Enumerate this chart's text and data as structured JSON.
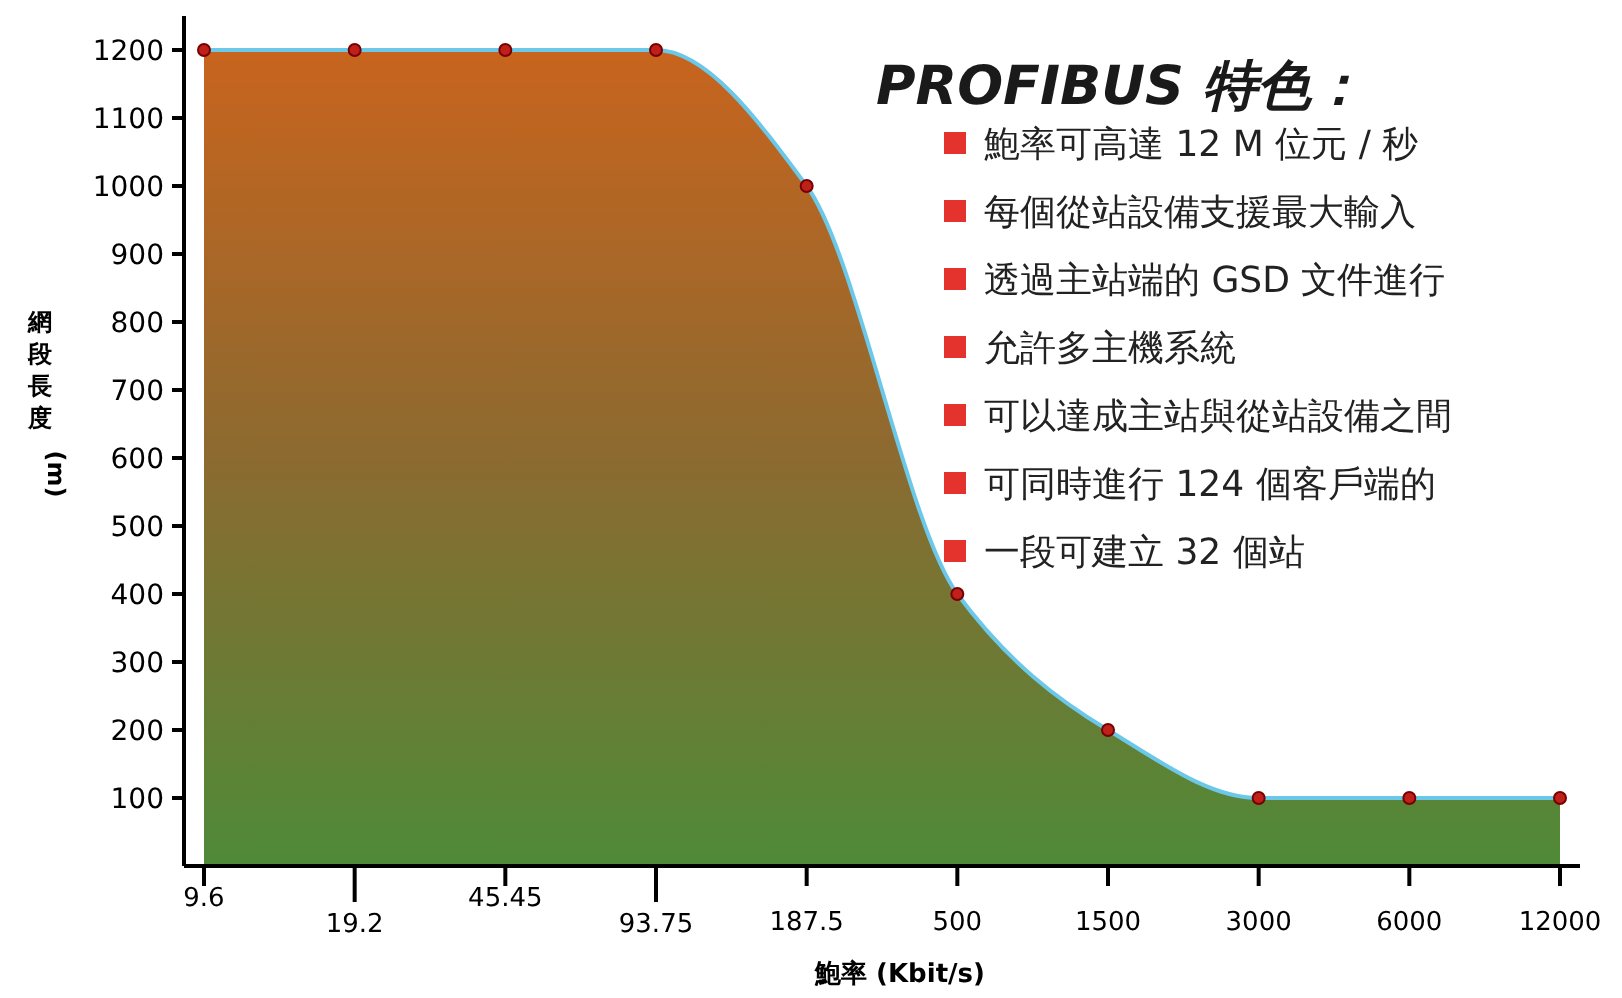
{
  "chart_data": {
    "type": "area",
    "title": "PROFIBUS 特色：",
    "xlabel": "鮑率 (Kbit/s)",
    "ylabel": "網段長度 (m)",
    "categories": [
      "9.6",
      "19.2",
      "45.45",
      "93.75",
      "187.5",
      "500",
      "1500",
      "3000",
      "6000",
      "12000"
    ],
    "series": [
      {
        "color": "#8c6a30",
        "values": [
          1200,
          1200,
          1200,
          1200,
          1000,
          400,
          200,
          100,
          100,
          100
        ]
      }
    ],
    "marker": "circle",
    "ylim": [
      0,
      1250
    ],
    "yticks": [
      100,
      200,
      300,
      400,
      500,
      600,
      700,
      800,
      900,
      1000,
      1100,
      1200
    ],
    "grid": false,
    "annotations": [
      "鮑率可高達 12 M 位元 / 秒",
      "每個從站設備支援最大輸入",
      "透過主站端的 GSD 文件進行",
      "允許多主機系統",
      "可以達成主站與從站設備之間",
      "可同時進行 124 個客戶端的",
      "一段可建立 32 個站"
    ]
  }
}
